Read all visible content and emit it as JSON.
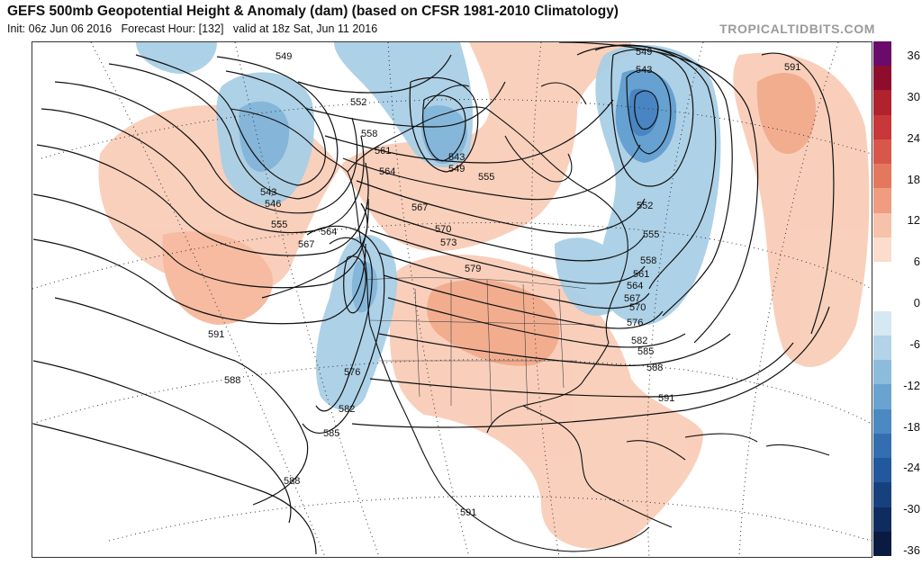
{
  "header": {
    "title": "GEFS 500mb Geopotential Height & Anomaly (dam) (based on CFSR 1981-2010 Climatology)",
    "init": "Init: 06z Jun 06 2016",
    "forecast_hour": "Forecast Hour: [132]",
    "valid": "valid at 18z Sat, Jun 11 2016",
    "brand": "TROPICALTIDBITS.COM"
  },
  "contour_labels": [
    "549",
    "591",
    "549",
    "543",
    "552",
    "558",
    "561",
    "564",
    "567",
    "570",
    "573",
    "579",
    "543",
    "546",
    "555",
    "564",
    "567",
    "549",
    "543",
    "555",
    "552",
    "555",
    "558",
    "561",
    "564",
    "567",
    "570",
    "576",
    "582",
    "585",
    "588",
    "591",
    "576",
    "582",
    "585",
    "588",
    "591",
    "588",
    "591"
  ],
  "colorbar": {
    "labels": [
      "36",
      "30",
      "24",
      "18",
      "12",
      "6",
      "0",
      "-6",
      "-12",
      "-18",
      "-24",
      "-30",
      "-36"
    ],
    "colors": [
      "#6a0a6a",
      "#8e0d2d",
      "#b0222c",
      "#c8373a",
      "#d9574a",
      "#e4785e",
      "#ef9c80",
      "#f6c2aa",
      "#fcdccd",
      "#ffffff",
      "#ffffff",
      "#d6e8f2",
      "#b2d3e8",
      "#8cbcdc",
      "#6aa3d0",
      "#4b89c2",
      "#336fb0",
      "#22589d",
      "#17417e",
      "#0f2c5e",
      "#0a1a40"
    ]
  }
}
